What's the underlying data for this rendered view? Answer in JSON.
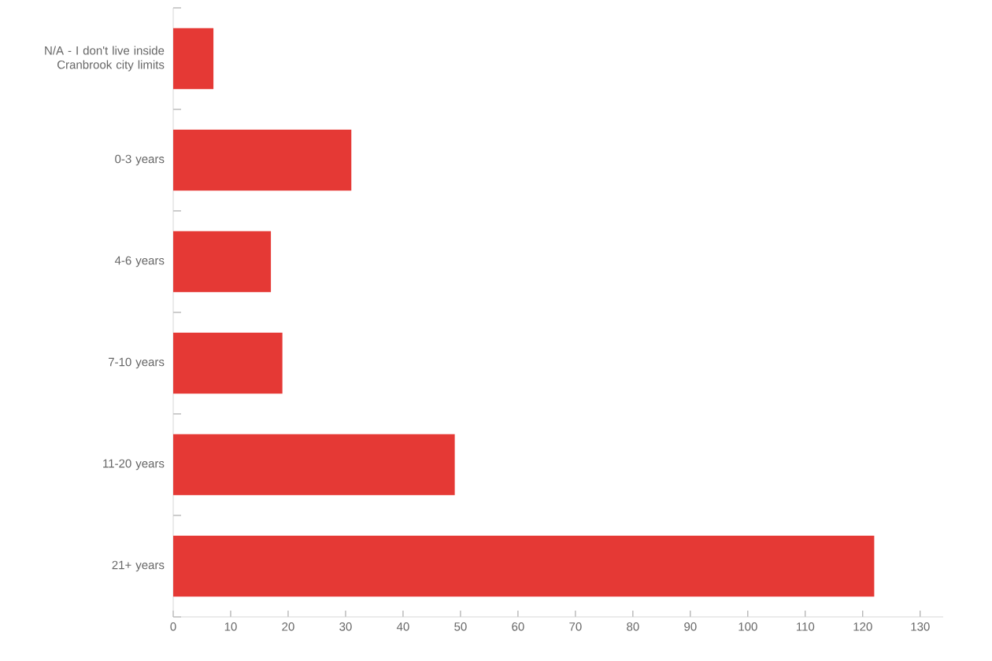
{
  "chart_data": {
    "type": "bar",
    "orientation": "horizontal",
    "categories": [
      "N/A - I don't live inside Cranbrook city limits",
      "0-3 years",
      "4-6 years",
      "7-10 years",
      "11-20 years",
      "21+ years"
    ],
    "values": [
      7,
      31,
      17,
      19,
      49,
      122
    ],
    "color": "#e53935",
    "xlim": [
      0,
      134
    ],
    "xticks": [
      0,
      10,
      20,
      30,
      40,
      50,
      60,
      70,
      80,
      90,
      100,
      110,
      120,
      130
    ],
    "grid": false
  }
}
